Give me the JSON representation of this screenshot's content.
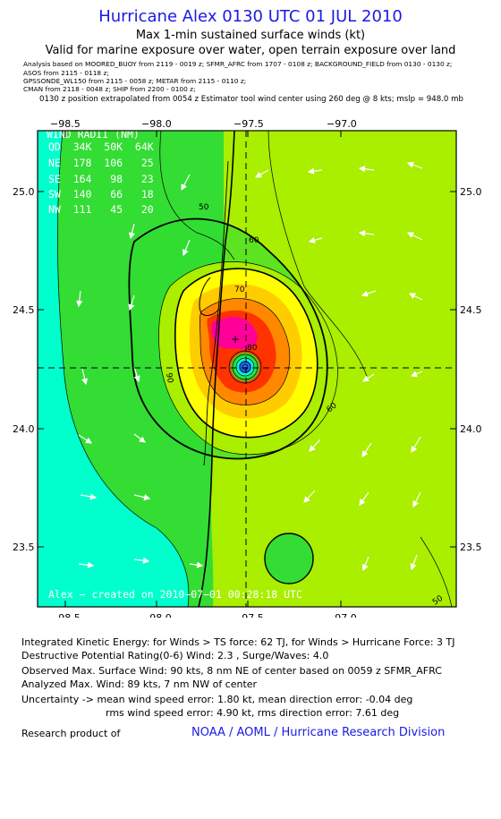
{
  "title": "Hurricane Alex 0130 UTC 01 JUL 2010",
  "subtitle": "Max 1-min sustained surface winds (kt)",
  "valid_for": "Valid for marine exposure over water, open terrain exposure over land",
  "analysis_lines": [
    "Analysis based on   MOORED_BUOY from 2119 - 0019 z;   SFMR_AFRC from 1707 - 0108 z;   BACKGROUND_FIELD from 0130 - 0130 z;",
    "ASOS from  2115 - 0118 z;",
    "GPSSONDE_WL150 from  2115 - 0058 z;    METAR from  2115 - 0110 z;",
    "CMAN from  2118 - 0048 z;   SHIP from  2200 - 0100 z;"
  ],
  "position_note": "0130 z position extrapolated from 0054 z Estimator tool wind center using  260 deg @  8 kts;  mslp = 948.0 mb",
  "map": {
    "lon_ticks": [
      "−98.5",
      "−98.0",
      "−97.5",
      "−97.0"
    ],
    "lat_ticks": [
      "25.0",
      "24.5",
      "24.0",
      "23.5"
    ],
    "wind_radii": {
      "header": "WIND RADII (NM)",
      "rows": [
        "QD  34K  50K  64K",
        "NE  178  106   25",
        "SE  164   98   23",
        "SW  140   66   18",
        "NW  111   45   20"
      ]
    },
    "contour_labels": [
      "50",
      "60",
      "70",
      "80",
      "90",
      "60",
      "50"
    ],
    "footer": "Alex − created on 2010−07−01 00:28:18 UTC",
    "colors": {
      "cyan": "#00ffcc",
      "green": "#33dd33",
      "yellowgreen": "#aaee00",
      "yellow": "#ffff00",
      "orange_light": "#ffcc00",
      "orange": "#ff8800",
      "red": "#ff3300",
      "magenta": "#ff0099"
    }
  },
  "info": {
    "ike": "Integrated Kinetic Energy:  for Winds > TS force: 62 TJ,  for Winds > Hurricane Force: 3 TJ",
    "destructive": "Destructive Potential Rating(0-6)    Wind: 2.3 , Surge/Waves: 4.0",
    "observed": "Observed Max. Surface Wind: 90 kts, 8 nm NE of center based on 0059 z SFMR_AFRC",
    "analyzed": "Analyzed Max. Wind: 89 kts, 7 nm NW of center",
    "uncertainty_1": "Uncertainty -> mean wind speed error: 1.80 kt,    mean direction error:  -0.04 deg",
    "uncertainty_2": "rms wind speed error: 4.90 kt,    rms direction error: 7.61 deg",
    "credit": "Research product of",
    "org": "NOAA / AOML / Hurricane Research Division"
  }
}
